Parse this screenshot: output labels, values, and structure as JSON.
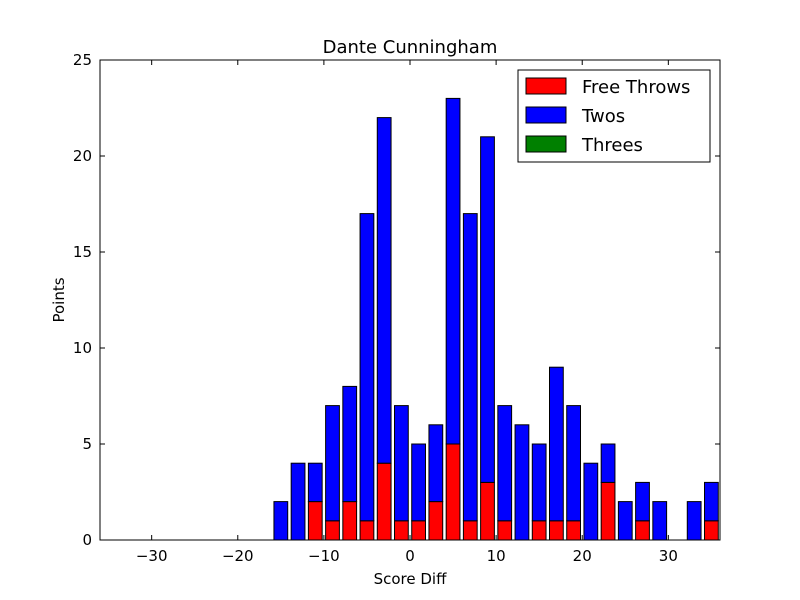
{
  "chart_data": {
    "type": "bar",
    "stacked": true,
    "title": "Dante Cunningham",
    "xlabel": "Score Diff",
    "ylabel": "Points",
    "xlim": [
      -36,
      36
    ],
    "ylim": [
      0,
      25
    ],
    "xticks": [
      -30,
      -20,
      -10,
      0,
      10,
      20,
      30
    ],
    "xtick_labels": [
      "−30",
      "−20",
      "−10",
      "0",
      "10",
      "20",
      "30"
    ],
    "yticks": [
      0,
      5,
      10,
      15,
      20,
      25
    ],
    "ytick_labels": [
      "0",
      "5",
      "10",
      "15",
      "20",
      "25"
    ],
    "bar_width": 1.6,
    "x": [
      -35,
      -33,
      -31,
      -29,
      -27,
      -25,
      -23,
      -21,
      -19,
      -17,
      -15,
      -13,
      -11,
      -9,
      -7,
      -5,
      -3,
      -1,
      1,
      3,
      5,
      7,
      9,
      11,
      13,
      15,
      17,
      19,
      21,
      23,
      25,
      27,
      29,
      31,
      33,
      35
    ],
    "series": [
      {
        "name": "Free Throws",
        "color": "#ff0000",
        "values": [
          0,
          0,
          0,
          0,
          0,
          0,
          0,
          0,
          0,
          0,
          0,
          0,
          2,
          1,
          2,
          1,
          4,
          1,
          1,
          2,
          5,
          1,
          3,
          1,
          0,
          1,
          1,
          1,
          0,
          3,
          0,
          1,
          0,
          0,
          0,
          1
        ]
      },
      {
        "name": "Twos",
        "color": "#0000ff",
        "values": [
          0,
          0,
          0,
          0,
          0,
          0,
          0,
          0,
          0,
          0,
          2,
          4,
          2,
          6,
          6,
          16,
          18,
          6,
          4,
          4,
          18,
          16,
          18,
          6,
          6,
          4,
          8,
          6,
          4,
          2,
          2,
          2,
          2,
          0,
          2,
          2
        ]
      },
      {
        "name": "Threes",
        "color": "#008000",
        "values": [
          0,
          0,
          0,
          0,
          0,
          0,
          0,
          0,
          0,
          0,
          0,
          0,
          0,
          0,
          0,
          0,
          0,
          0,
          0,
          0,
          0,
          0,
          0,
          0,
          0,
          0,
          0,
          0,
          0,
          0,
          0,
          0,
          0,
          0,
          0,
          0
        ]
      }
    ],
    "legend_position": "top-right",
    "grid": false
  }
}
